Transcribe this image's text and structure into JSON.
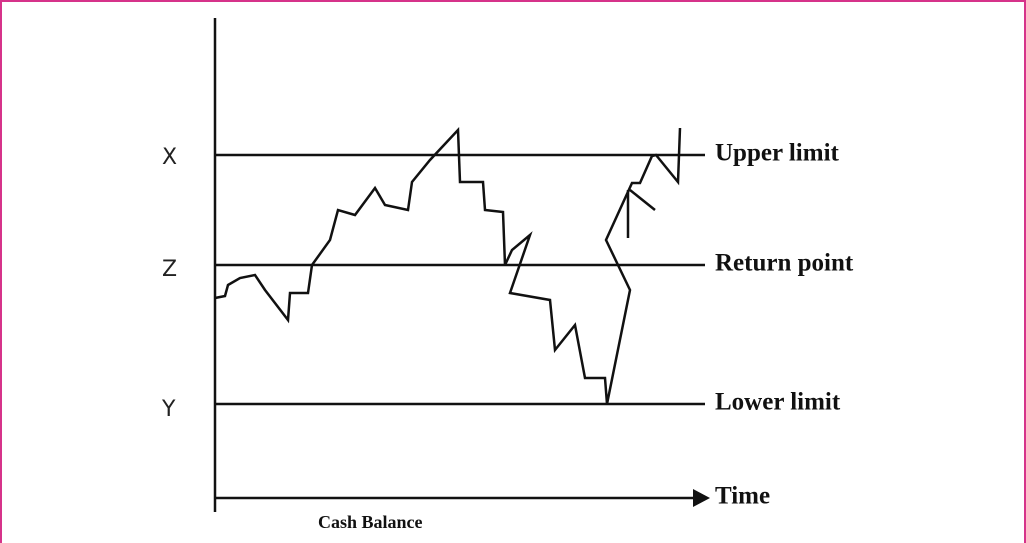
{
  "levels": [
    {
      "letter": "X",
      "label": "Upper limit"
    },
    {
      "letter": "Z",
      "label": "Return point"
    },
    {
      "letter": "Y",
      "label": "Lower limit"
    }
  ],
  "x_axis_label": "Time",
  "caption": "Cash Balance"
}
